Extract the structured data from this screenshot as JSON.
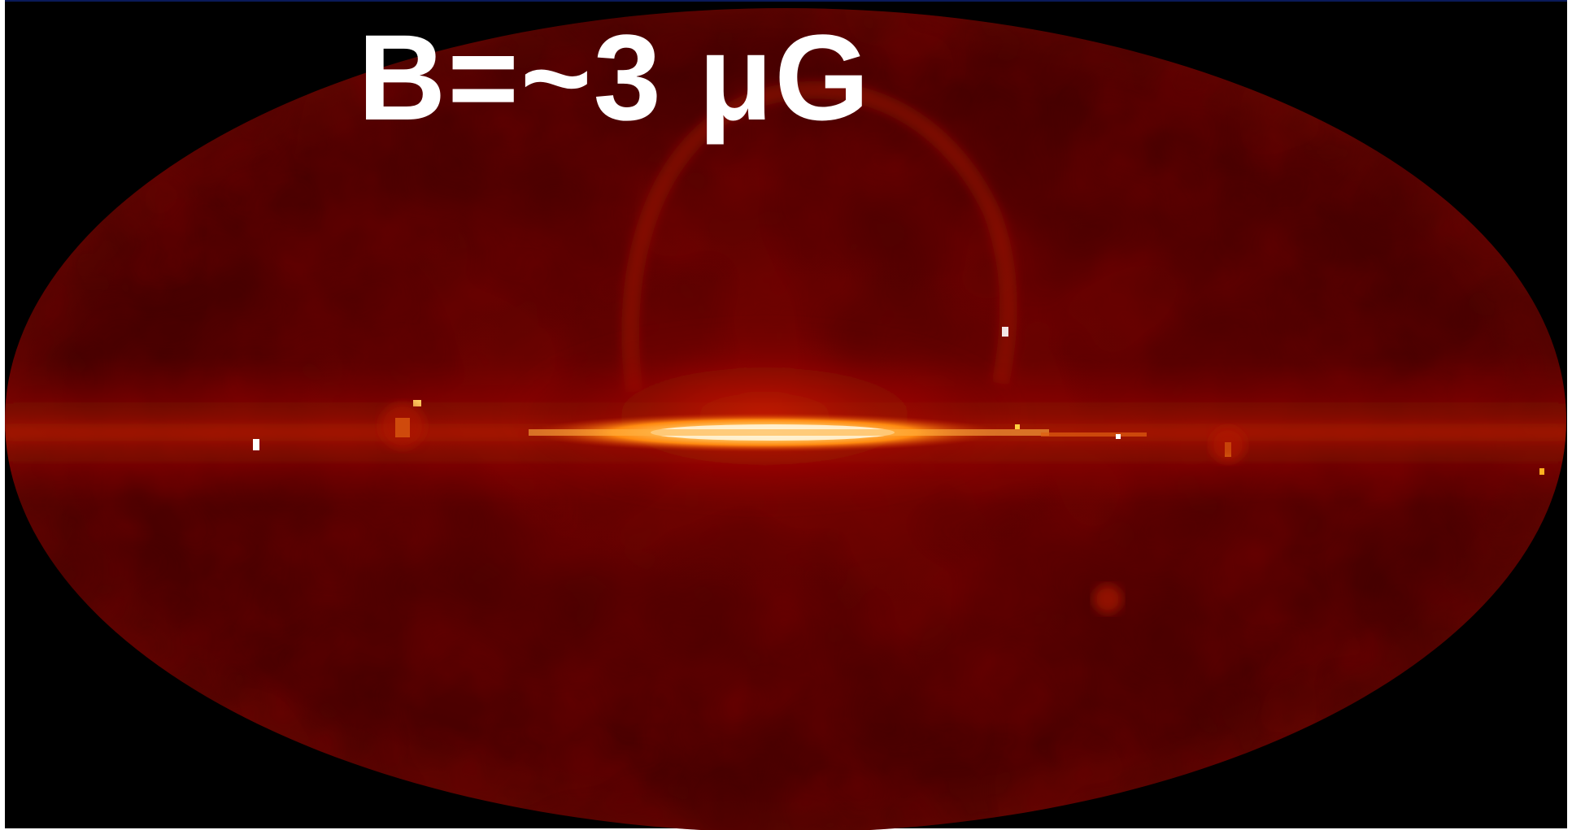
{
  "title": "B=~3 μG",
  "palette": {
    "background": "#000000",
    "disk": "#5a0000",
    "disk_edge": "#3a0000",
    "plane_glow": "#b01000",
    "plane_core": "#ffb030",
    "plane_hot": "#fff0c0",
    "title_color": "#ffffff"
  }
}
